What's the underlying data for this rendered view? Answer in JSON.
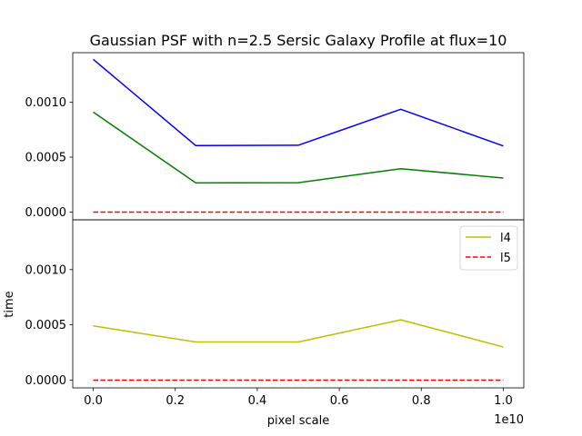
{
  "chart_data": {
    "type": "line",
    "title": "Gaussian PSF with n=2.5 Sersic Galaxy Profile at flux=10",
    "xlabel": "pixel scale",
    "ylabel": "time",
    "x_offset_label": "1e10",
    "x": [
      0.0,
      2500000000.0,
      5000000000.0,
      7500000000.0,
      10000000000.0
    ],
    "xlim": [
      -500000000.0,
      10500000000.0
    ],
    "xticks": [
      0.0,
      2000000000.0,
      4000000000.0,
      6000000000.0,
      8000000000.0,
      10000000000.0
    ],
    "xtick_labels": [
      "0.0",
      "0.2",
      "0.4",
      "0.6",
      "0.8",
      "1.0"
    ],
    "grid": false,
    "panels": [
      {
        "ylim": [
          -7e-05,
          0.00145
        ],
        "yticks": [
          0.0,
          0.0005,
          0.001
        ],
        "ytick_labels": [
          "0.0000",
          "0.0005",
          "0.0010"
        ],
        "series": [
          {
            "color": "#0000ff",
            "linestyle": "solid",
            "values": [
              0.00139,
              0.000605,
              0.000608,
              0.000935,
              0.000602
            ]
          },
          {
            "color": "#008000",
            "linestyle": "solid",
            "values": [
              0.00091,
              0.000265,
              0.000268,
              0.000395,
              0.00031
            ]
          },
          {
            "color": "#ff0000",
            "linestyle": "dashed",
            "values": [
              0.0,
              0.0,
              0.0,
              0.0,
              0.0
            ]
          }
        ]
      },
      {
        "ylim": [
          -7e-05,
          0.00145
        ],
        "yticks": [
          0.0,
          0.0005,
          0.001
        ],
        "ytick_labels": [
          "0.0000",
          "0.0005",
          "0.0010"
        ],
        "legend_position": "upper right",
        "series": [
          {
            "name": "l4",
            "color": "#bfbf00",
            "linestyle": "solid",
            "values": [
              0.00049,
              0.000345,
              0.000345,
              0.000545,
              0.0003
            ]
          },
          {
            "name": "l5",
            "color": "#ff0000",
            "linestyle": "dashed",
            "values": [
              0.0,
              0.0,
              0.0,
              0.0,
              0.0
            ]
          }
        ]
      }
    ]
  }
}
